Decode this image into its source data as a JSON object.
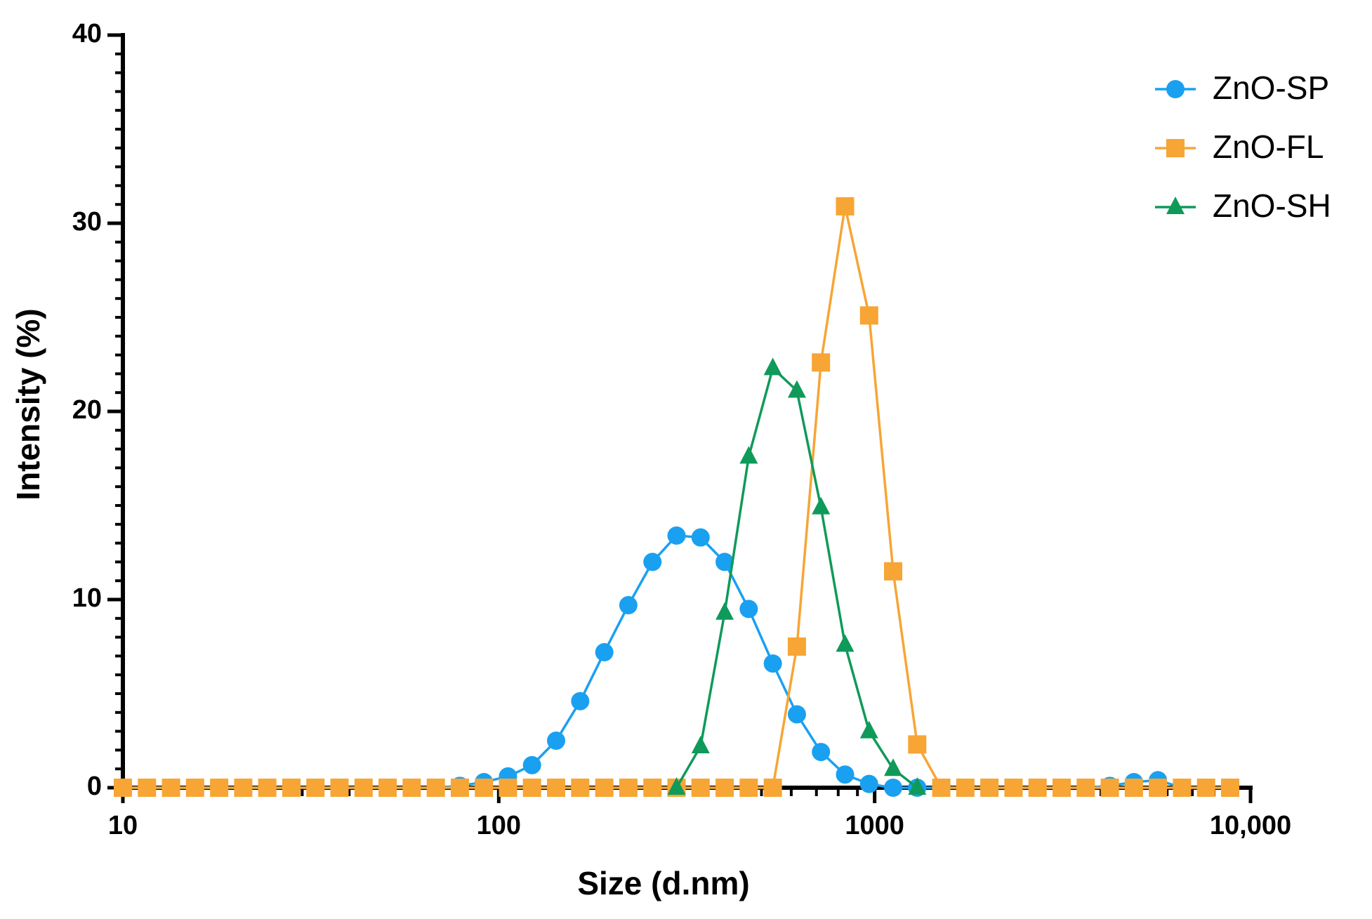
{
  "chart_data": {
    "type": "line",
    "x_label": "Size (d.nm)",
    "y_label": "Intensity (%)",
    "xscale": "log",
    "xlim": [
      10,
      10000
    ],
    "ylim": [
      0,
      40
    ],
    "xticks": [
      10,
      100,
      1000,
      {
        "value": 10000,
        "label": "10,000"
      }
    ],
    "yticks": [
      0,
      10,
      20,
      30,
      40
    ],
    "legend": "upper right",
    "x": [
      10,
      11.59,
      13.43,
      15.56,
      18.04,
      20.9,
      24.22,
      28.07,
      32.53,
      37.7,
      43.69,
      50.63,
      58.67,
      68,
      78.8,
      91.32,
      105.8,
      122.6,
      142.1,
      164.7,
      190.9,
      221.2,
      256.4,
      297.1,
      344.3,
      399,
      462.4,
      535.9,
      621.1,
      719.7,
      834.1,
      966.6,
      1120,
      1298,
      1504,
      1743,
      2020,
      2341,
      2713,
      3144,
      3644,
      4223,
      4894,
      5671,
      6572,
      7617,
      8827
    ],
    "series": [
      {
        "name": "ZnO-SP",
        "color": "#1aa0f0",
        "marker": "circle",
        "values": [
          0,
          0,
          0,
          0,
          0,
          0,
          0,
          0,
          0,
          0,
          0,
          0,
          0,
          0,
          0.1,
          0.3,
          0.6,
          1.2,
          2.5,
          4.6,
          7.2,
          9.7,
          12,
          13.4,
          13.3,
          12,
          9.5,
          6.6,
          3.9,
          1.9,
          0.7,
          0.2,
          0,
          0,
          0,
          0,
          0,
          0,
          0,
          0,
          0,
          0.1,
          0.3,
          0.4,
          0,
          0,
          0
        ]
      },
      {
        "name": "ZnO-FL",
        "color": "#f7a535",
        "marker": "square",
        "values": [
          0,
          0,
          0,
          0,
          0,
          0,
          0,
          0,
          0,
          0,
          0,
          0,
          0,
          0,
          0,
          0,
          0,
          0,
          0,
          0,
          0,
          0,
          0,
          0,
          0,
          0,
          0,
          0,
          7.5,
          22.6,
          30.9,
          25.1,
          11.5,
          2.3,
          0,
          0,
          0,
          0,
          0,
          0,
          0,
          0,
          0,
          0,
          0,
          0,
          0
        ]
      },
      {
        "name": "ZnO-SH",
        "color": "#0f9a5a",
        "marker": "triangle",
        "values": [
          null,
          null,
          null,
          null,
          null,
          null,
          null,
          null,
          null,
          null,
          null,
          null,
          null,
          null,
          null,
          null,
          null,
          null,
          null,
          null,
          null,
          null,
          null,
          0,
          2.2,
          9.3,
          17.6,
          22.3,
          21.1,
          14.9,
          7.6,
          3,
          1,
          0,
          null,
          null,
          null,
          null,
          null,
          null,
          null,
          null,
          null,
          null,
          null,
          null,
          null
        ]
      }
    ]
  }
}
